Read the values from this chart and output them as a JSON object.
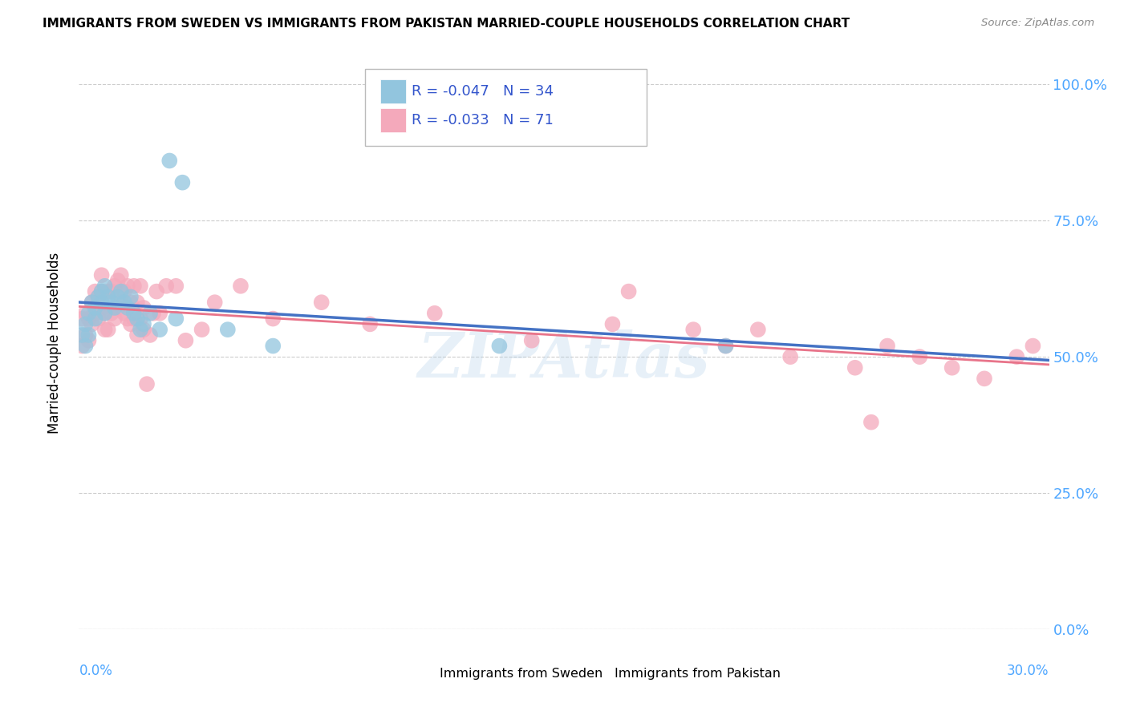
{
  "title": "IMMIGRANTS FROM SWEDEN VS IMMIGRANTS FROM PAKISTAN MARRIED-COUPLE HOUSEHOLDS CORRELATION CHART",
  "source": "Source: ZipAtlas.com",
  "ylabel": "Married-couple Households",
  "ytick_vals": [
    0.0,
    0.25,
    0.5,
    0.75,
    1.0
  ],
  "ytick_labels": [
    "0.0%",
    "25.0%",
    "50.0%",
    "75.0%",
    "100.0%"
  ],
  "xmin": 0.0,
  "xmax": 0.3,
  "ymin": 0.0,
  "ymax": 1.05,
  "r1": "-0.047",
  "n1": "34",
  "r2": "-0.033",
  "n2": "71",
  "legend1_color": "#92c5de",
  "legend2_color": "#f4a9bb",
  "trendline1_color": "#4472c4",
  "trendline2_color": "#e8748a",
  "watermark": "ZIPAtlas",
  "footer_label1": "Immigrants from Sweden",
  "footer_label2": "Immigrants from Pakistan",
  "sweden_x": [
    0.001,
    0.002,
    0.002,
    0.003,
    0.003,
    0.004,
    0.005,
    0.005,
    0.006,
    0.007,
    0.007,
    0.008,
    0.008,
    0.009,
    0.01,
    0.011,
    0.012,
    0.013,
    0.014,
    0.015,
    0.016,
    0.017,
    0.018,
    0.019,
    0.02,
    0.022,
    0.025,
    0.03,
    0.032,
    0.046,
    0.06,
    0.13,
    0.2,
    0.028
  ],
  "sweden_y": [
    0.54,
    0.56,
    0.52,
    0.58,
    0.54,
    0.6,
    0.57,
    0.59,
    0.61,
    0.62,
    0.6,
    0.63,
    0.58,
    0.61,
    0.6,
    0.59,
    0.61,
    0.62,
    0.6,
    0.59,
    0.61,
    0.58,
    0.57,
    0.55,
    0.56,
    0.58,
    0.55,
    0.57,
    0.82,
    0.55,
    0.52,
    0.52,
    0.52,
    0.86
  ],
  "pakistan_x": [
    0.001,
    0.001,
    0.002,
    0.002,
    0.003,
    0.003,
    0.004,
    0.004,
    0.005,
    0.005,
    0.006,
    0.006,
    0.007,
    0.007,
    0.007,
    0.008,
    0.008,
    0.009,
    0.009,
    0.01,
    0.01,
    0.011,
    0.011,
    0.012,
    0.012,
    0.013,
    0.013,
    0.014,
    0.014,
    0.015,
    0.015,
    0.016,
    0.016,
    0.017,
    0.017,
    0.018,
    0.018,
    0.019,
    0.019,
    0.02,
    0.02,
    0.021,
    0.022,
    0.023,
    0.024,
    0.025,
    0.027,
    0.03,
    0.033,
    0.038,
    0.042,
    0.05,
    0.06,
    0.075,
    0.09,
    0.11,
    0.14,
    0.165,
    0.19,
    0.17,
    0.2,
    0.21,
    0.22,
    0.24,
    0.25,
    0.26,
    0.27,
    0.28,
    0.29,
    0.295,
    0.245
  ],
  "pakistan_y": [
    0.52,
    0.57,
    0.54,
    0.58,
    0.53,
    0.57,
    0.56,
    0.6,
    0.58,
    0.62,
    0.57,
    0.61,
    0.65,
    0.59,
    0.62,
    0.55,
    0.58,
    0.62,
    0.55,
    0.58,
    0.62,
    0.57,
    0.63,
    0.59,
    0.64,
    0.6,
    0.65,
    0.58,
    0.62,
    0.57,
    0.63,
    0.6,
    0.56,
    0.63,
    0.57,
    0.6,
    0.54,
    0.63,
    0.57,
    0.55,
    0.59,
    0.45,
    0.54,
    0.58,
    0.62,
    0.58,
    0.63,
    0.63,
    0.53,
    0.55,
    0.6,
    0.63,
    0.57,
    0.6,
    0.56,
    0.58,
    0.53,
    0.56,
    0.55,
    0.62,
    0.52,
    0.55,
    0.5,
    0.48,
    0.52,
    0.5,
    0.48,
    0.46,
    0.5,
    0.52,
    0.38
  ]
}
